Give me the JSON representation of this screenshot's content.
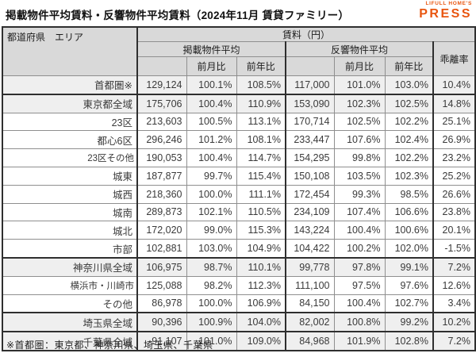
{
  "title": "掲載物件平均賃料・反響物件平均賃料（2024年11月 賃貸ファミリー）",
  "logo": {
    "top_text": "LIFULL HOME'S",
    "main_text": "PRESS",
    "color": "#e9550f"
  },
  "footnote": "※首都圏：東京都、神奈川県、埼玉県、千葉県",
  "chart_data": {
    "type": "table",
    "title": "掲載物件平均賃料・反響物件平均賃料（2024年11月 賃貸ファミリー）",
    "header": {
      "region_col": "都道府県　エリア",
      "price_group": "賃料（円）",
      "listed_group": "掲載物件平均",
      "response_group": "反響物件平均",
      "mom": "前月比",
      "yoy": "前年比",
      "divergence": "乖離率"
    },
    "rows": [
      {
        "pref": "首都圏※",
        "area": "",
        "indent": "none",
        "shaded": true,
        "thick_top": false,
        "listed_avg": "129,124",
        "listed_mom": "100.1%",
        "listed_yoy": "108.5%",
        "response_avg": "117,000",
        "response_mom": "101.0%",
        "response_yoy": "103.0%",
        "divergence": "10.4%"
      },
      {
        "pref": "東京都",
        "area": "全域",
        "indent": "none",
        "shaded": true,
        "thick_top": true,
        "listed_avg": "175,706",
        "listed_mom": "100.4%",
        "listed_yoy": "110.9%",
        "response_avg": "153,090",
        "response_mom": "102.3%",
        "response_yoy": "102.5%",
        "divergence": "14.8%"
      },
      {
        "pref": "",
        "area": "23区",
        "indent": "a",
        "shaded": false,
        "thick_top": false,
        "listed_avg": "213,603",
        "listed_mom": "100.5%",
        "listed_yoy": "113.1%",
        "response_avg": "170,714",
        "response_mom": "102.5%",
        "response_yoy": "102.2%",
        "divergence": "25.1%"
      },
      {
        "pref": "",
        "area": "都心6区",
        "indent": "b",
        "shaded": false,
        "thick_top": false,
        "listed_avg": "296,246",
        "listed_mom": "101.2%",
        "listed_yoy": "108.1%",
        "response_avg": "233,447",
        "response_mom": "107.6%",
        "response_yoy": "102.4%",
        "divergence": "26.9%"
      },
      {
        "pref": "",
        "area": "23区その他",
        "indent": "right",
        "shaded": false,
        "thick_top": false,
        "listed_avg": "190,053",
        "listed_mom": "100.4%",
        "listed_yoy": "114.7%",
        "response_avg": "154,295",
        "response_mom": "99.8%",
        "response_yoy": "102.2%",
        "divergence": "23.2%"
      },
      {
        "pref": "",
        "area": "城東",
        "indent": "b",
        "shaded": false,
        "thick_top": false,
        "listed_avg": "187,877",
        "listed_mom": "99.7%",
        "listed_yoy": "115.4%",
        "response_avg": "150,108",
        "response_mom": "103.5%",
        "response_yoy": "102.3%",
        "divergence": "25.2%"
      },
      {
        "pref": "",
        "area": "城西",
        "indent": "b",
        "shaded": false,
        "thick_top": false,
        "listed_avg": "218,360",
        "listed_mom": "100.0%",
        "listed_yoy": "111.1%",
        "response_avg": "172,454",
        "response_mom": "99.3%",
        "response_yoy": "98.5%",
        "divergence": "26.6%"
      },
      {
        "pref": "",
        "area": "城南",
        "indent": "b",
        "shaded": false,
        "thick_top": false,
        "listed_avg": "289,873",
        "listed_mom": "102.1%",
        "listed_yoy": "110.5%",
        "response_avg": "234,109",
        "response_mom": "107.4%",
        "response_yoy": "106.6%",
        "divergence": "23.8%"
      },
      {
        "pref": "",
        "area": "城北",
        "indent": "b",
        "shaded": false,
        "thick_top": false,
        "listed_avg": "172,020",
        "listed_mom": "99.0%",
        "listed_yoy": "115.3%",
        "response_avg": "143,224",
        "response_mom": "100.4%",
        "response_yoy": "100.6%",
        "divergence": "20.1%"
      },
      {
        "pref": "",
        "area": "市部",
        "indent": "c",
        "shaded": false,
        "thick_top": false,
        "listed_avg": "102,881",
        "listed_mom": "103.0%",
        "listed_yoy": "104.9%",
        "response_avg": "104,422",
        "response_mom": "100.2%",
        "response_yoy": "102.0%",
        "divergence": "-1.5%"
      },
      {
        "pref": "神奈川県",
        "area": "全域",
        "indent": "none",
        "shaded": true,
        "thick_top": true,
        "listed_avg": "106,975",
        "listed_mom": "98.7%",
        "listed_yoy": "110.1%",
        "response_avg": "99,778",
        "response_mom": "97.8%",
        "response_yoy": "99.1%",
        "divergence": "7.2%"
      },
      {
        "pref": "",
        "area": "横浜市・川崎市",
        "indent": "right",
        "shaded": false,
        "thick_top": false,
        "listed_avg": "125,088",
        "listed_mom": "98.2%",
        "listed_yoy": "112.3%",
        "response_avg": "111,100",
        "response_mom": "97.5%",
        "response_yoy": "97.6%",
        "divergence": "12.6%"
      },
      {
        "pref": "",
        "area": "その他",
        "indent": "c",
        "shaded": false,
        "thick_top": false,
        "listed_avg": "86,978",
        "listed_mom": "100.0%",
        "listed_yoy": "106.9%",
        "response_avg": "84,150",
        "response_mom": "100.4%",
        "response_yoy": "102.7%",
        "divergence": "3.4%"
      },
      {
        "pref": "埼玉県",
        "area": "全域",
        "indent": "none",
        "shaded": true,
        "thick_top": true,
        "listed_avg": "90,396",
        "listed_mom": "100.9%",
        "listed_yoy": "104.0%",
        "response_avg": "82,002",
        "response_mom": "100.8%",
        "response_yoy": "99.2%",
        "divergence": "10.2%"
      },
      {
        "pref": "千葉県",
        "area": "全域",
        "indent": "none",
        "shaded": true,
        "thick_top": true,
        "listed_avg": "91,107",
        "listed_mom": "101.0%",
        "listed_yoy": "109.0%",
        "response_avg": "84,968",
        "response_mom": "101.9%",
        "response_yoy": "102.8%",
        "divergence": "7.2%"
      }
    ]
  }
}
